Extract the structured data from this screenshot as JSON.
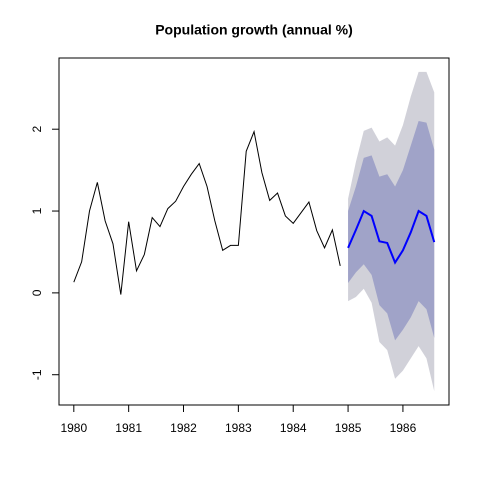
{
  "chart_data": {
    "type": "line",
    "title": "Population growth (annual %)",
    "xlim": [
      1979.73,
      1986.84
    ],
    "ylim": [
      -1.37,
      2.87
    ],
    "xticks": [
      1980,
      1981,
      1982,
      1983,
      1984,
      1985,
      1986
    ],
    "yticks": [
      -1,
      0,
      1,
      2
    ],
    "series": [
      {
        "color": "#000000",
        "x": [
          1980,
          1980.143,
          1980.286,
          1980.429,
          1980.571,
          1980.714,
          1980.857,
          1981,
          1981.143,
          1981.286,
          1981.429,
          1981.571,
          1981.714,
          1981.857,
          1982,
          1982.143,
          1982.286,
          1982.429,
          1982.571,
          1982.714,
          1982.857,
          1983,
          1983.143,
          1983.286,
          1983.429,
          1983.571,
          1983.714,
          1983.857,
          1984,
          1984.143,
          1984.286,
          1984.429,
          1984.571,
          1984.714,
          1984.857
        ],
        "values": [
          0.13,
          0.38,
          1.0,
          1.35,
          0.88,
          0.6,
          -0.02,
          0.87,
          0.27,
          0.47,
          0.92,
          0.81,
          1.03,
          1.12,
          1.3,
          1.45,
          1.58,
          1.3,
          0.88,
          0.52,
          0.58,
          0.58,
          1.73,
          1.97,
          1.47,
          1.13,
          1.22,
          0.94,
          0.85,
          0.98,
          1.11,
          0.76,
          0.55,
          0.77,
          0.33
        ]
      },
      {
        "color": "#0000ff",
        "x": [
          1985,
          1985.143,
          1985.286,
          1985.429,
          1985.571,
          1985.714,
          1985.857,
          1986,
          1986.143,
          1986.286,
          1986.429,
          1986.571
        ],
        "values": [
          0.55,
          0.77,
          1.0,
          0.94,
          0.63,
          0.61,
          0.37,
          0.52,
          0.74,
          1.0,
          0.94,
          0.62
        ],
        "intervals": [
          {
            "color": "#d1d1d9",
            "upper": [
              1.15,
              1.6,
              1.98,
              2.02,
              1.85,
              1.9,
              1.8,
              2.05,
              2.4,
              2.7,
              2.7,
              2.45
            ],
            "lower": [
              -0.1,
              -0.05,
              0.05,
              -0.12,
              -0.6,
              -0.7,
              -1.05,
              -0.95,
              -0.8,
              -0.65,
              -0.8,
              -1.2
            ]
          },
          {
            "color": "#a0a3c8",
            "upper": [
              1.0,
              1.3,
              1.65,
              1.68,
              1.42,
              1.45,
              1.3,
              1.5,
              1.8,
              2.1,
              2.08,
              1.75
            ],
            "lower": [
              0.12,
              0.25,
              0.35,
              0.22,
              -0.15,
              -0.25,
              -0.58,
              -0.45,
              -0.3,
              -0.1,
              -0.2,
              -0.55
            ]
          }
        ]
      }
    ]
  }
}
